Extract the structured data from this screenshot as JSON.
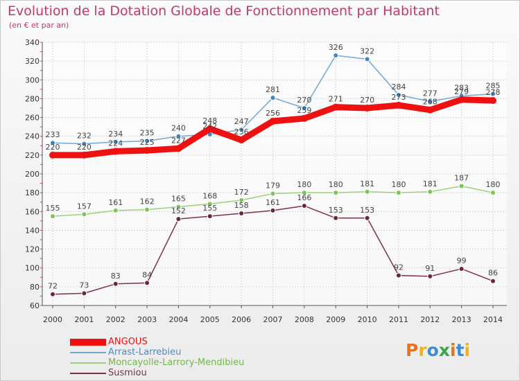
{
  "header": {
    "title": "Evolution de la Dotation Globale de Fonctionnement par Habitant",
    "subtitle": "(en € et par an)"
  },
  "logo": {
    "text": "Proxiti",
    "colors": [
      "#e8731e",
      "#f2b21a",
      "#3c8fcf",
      "#3aa64a",
      "#e8731e",
      "#3c8fcf",
      "#f2b21a"
    ]
  },
  "colors": {
    "title": "#c0386e",
    "grid": "#d8d8d8",
    "axis": "#555555",
    "tick": "#cc4466"
  },
  "chart_data": {
    "type": "line",
    "title": "Evolution de la Dotation Globale de Fonctionnement par Habitant",
    "subtitle": "(en € et par an)",
    "x": [
      "2000",
      "2001",
      "2002",
      "2003",
      "2004",
      "2005",
      "2006",
      "2007",
      "2008",
      "2009",
      "2010",
      "2011",
      "2012",
      "2013",
      "2014"
    ],
    "yticks": [
      "60",
      "80",
      "100",
      "120",
      "140",
      "160",
      "180",
      "200",
      "220",
      "240",
      "260",
      "280",
      "300",
      "320",
      "340"
    ],
    "ylim": [
      60,
      340
    ],
    "grid": true,
    "legend_position": "bottom-left",
    "series": [
      {
        "name": "Arrast-Larrebieu",
        "color": "#6fa8d6",
        "marker": "#3d86c6",
        "values": [
          233,
          232,
          234,
          235,
          240,
          242,
          247,
          281,
          270,
          326,
          322,
          284,
          277,
          283,
          285
        ]
      },
      {
        "name": "Moncayolle-Larrory-Mendibieu",
        "color": "#9ad27a",
        "marker": "#7dc458",
        "values": [
          155,
          157,
          161,
          162,
          165,
          168,
          172,
          179,
          180,
          180,
          181,
          180,
          181,
          187,
          180
        ]
      },
      {
        "name": "Susmiou",
        "color": "#7a3340",
        "marker": "#6b2833",
        "values": [
          72,
          73,
          83,
          84,
          152,
          155,
          158,
          161,
          166,
          153,
          153,
          92,
          91,
          99,
          86
        ]
      },
      {
        "name": "ANGOUS",
        "color": "#ee1111",
        "marker": "#ee1111",
        "values": [
          220,
          220,
          224,
          225,
          227,
          248,
          236,
          256,
          259,
          271,
          270,
          273,
          268,
          279,
          278
        ]
      }
    ],
    "legend": [
      "ANGOUS",
      "Arrast-Larrebieu",
      "Moncayolle-Larrory-Mendibieu",
      "Susmiou"
    ]
  }
}
